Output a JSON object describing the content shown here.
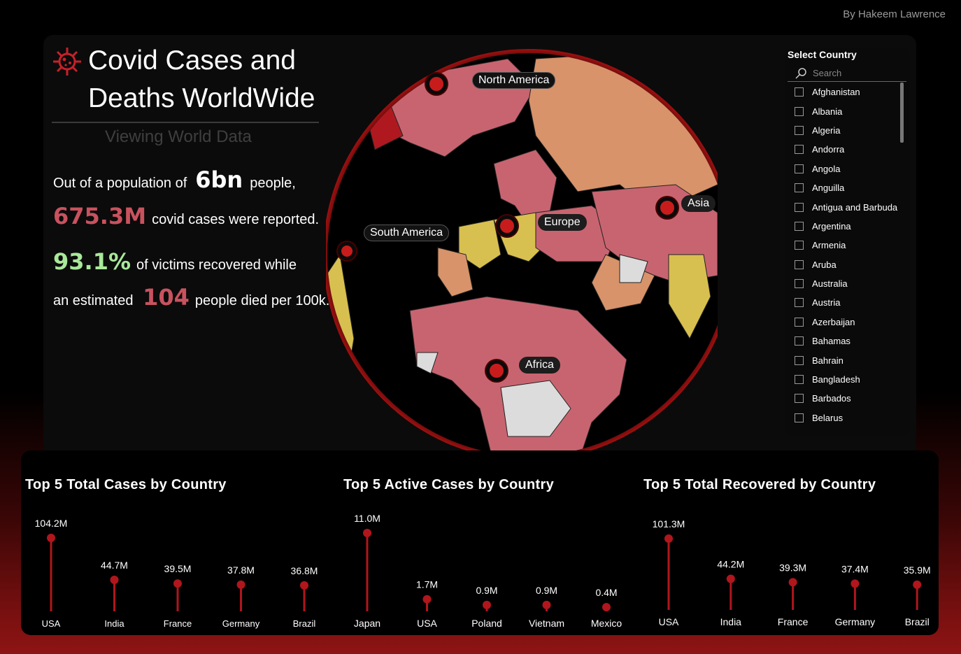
{
  "author": "By Hakeem Lawrence",
  "header": {
    "title_line1": "Covid Cases and",
    "title_line2": "Deaths WorldWide",
    "subtitle": "Viewing World Data"
  },
  "stats": {
    "line1_pre": "Out of a population of",
    "population": "6bn",
    "line1_post": "people,",
    "cases": "675.3M",
    "line2_post": "covid cases were reported.",
    "recovered_pct": "93.1%",
    "line3_post": "of victims recovered while",
    "line4_pre": "an estimated",
    "deaths_per_100k": "104",
    "line4_post": "people died per 100k."
  },
  "map": {
    "labels": {
      "north_america": "North America",
      "south_america": "South America",
      "europe": "Europe",
      "asia": "Asia",
      "africa": "Africa"
    }
  },
  "slicer": {
    "title": "Select Country",
    "search_placeholder": "Search",
    "items": [
      "Afghanistan",
      "Albania",
      "Algeria",
      "Andorra",
      "Angola",
      "Anguilla",
      "Antigua and Barbuda",
      "Argentina",
      "Armenia",
      "Aruba",
      "Australia",
      "Austria",
      "Azerbaijan",
      "Bahamas",
      "Bahrain",
      "Bangladesh",
      "Barbados",
      "Belarus"
    ]
  },
  "chart_data": [
    {
      "type": "lollipop",
      "title": "Top 5 Total Cases by Country",
      "categories": [
        "USA",
        "India",
        "France",
        "Germany",
        "Brazil"
      ],
      "values": [
        104.2,
        44.7,
        39.5,
        37.8,
        36.8
      ],
      "labels": [
        "104.2M",
        "44.7M",
        "39.5M",
        "37.8M",
        "36.8M"
      ],
      "unit": "M",
      "color": "#b0161c"
    },
    {
      "type": "lollipop",
      "title": "Top 5 Active Cases by Country",
      "categories": [
        "Japan",
        "USA",
        "Poland",
        "Vietnam",
        "Mexico"
      ],
      "values": [
        11.0,
        1.7,
        0.9,
        0.9,
        0.4
      ],
      "labels": [
        "11.0M",
        "1.7M",
        "0.9M",
        "0.9M",
        "0.4M"
      ],
      "unit": "M",
      "color": "#b0161c"
    },
    {
      "type": "lollipop",
      "title": "Top 5 Total Recovered by Country",
      "categories": [
        "USA",
        "India",
        "France",
        "Germany",
        "Brazil"
      ],
      "values": [
        101.3,
        44.2,
        39.3,
        37.4,
        35.9
      ],
      "labels": [
        "101.3M",
        "44.2M",
        "39.3M",
        "37.4M",
        "35.9M"
      ],
      "unit": "M",
      "color": "#b0161c"
    }
  ]
}
